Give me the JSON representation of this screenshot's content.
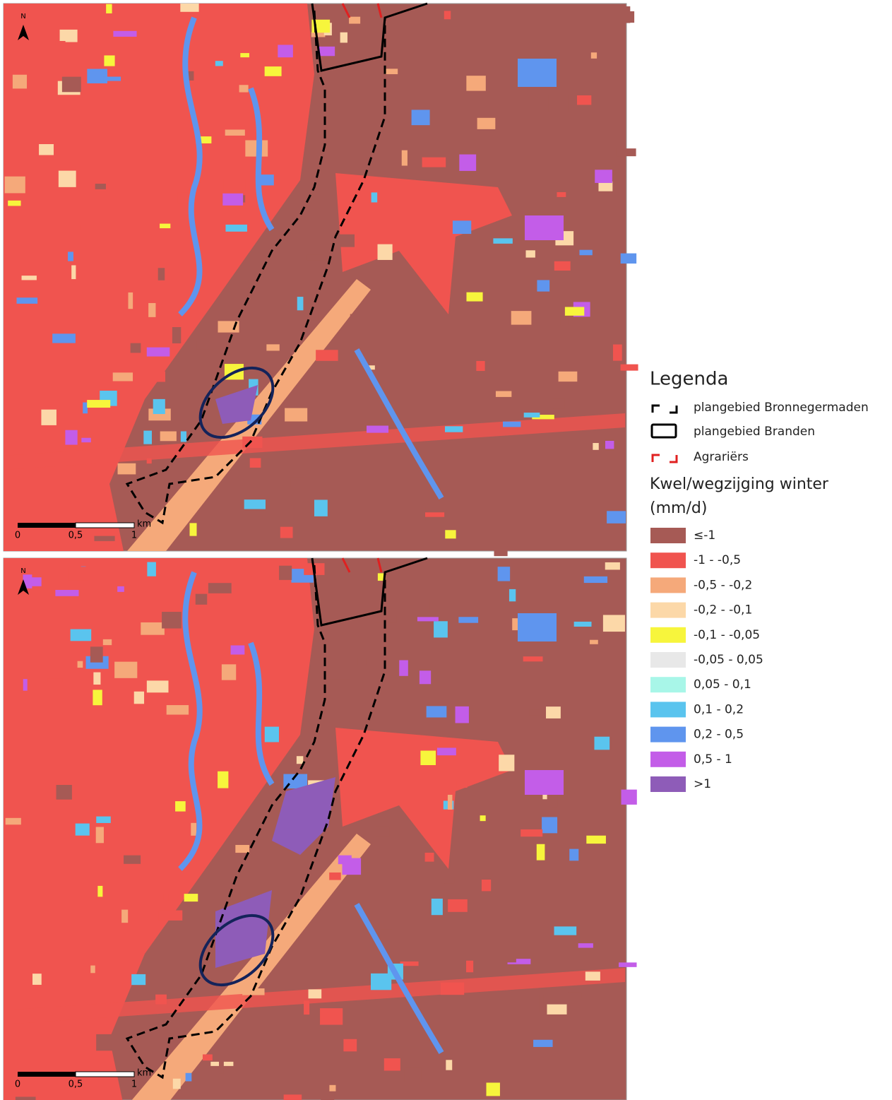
{
  "legend": {
    "title": "Legenda",
    "boundaries": [
      "plangebied Bronnegermaden",
      "plangebied Branden",
      "Agrariërs"
    ],
    "class_title": "Kwel/wegzijging winter",
    "class_unit": "(mm/d)",
    "classes": [
      {
        "label": "≤-1",
        "color": "#a65a55"
      },
      {
        "label": "-1 - -0,5",
        "color": "#f0544f"
      },
      {
        "label": "-0,5 - -0,2",
        "color": "#f5a97a"
      },
      {
        "label": "-0,2 - -0,1",
        "color": "#fcd8a8"
      },
      {
        "label": "-0,1 - -0,05",
        "color": "#f7f53c"
      },
      {
        "label": "-0,05 - 0,05",
        "color": "#e8e8e8"
      },
      {
        "label": "0,05 - 0,1",
        "color": "#a8f6e8"
      },
      {
        "label": "0,1 - 0,2",
        "color": "#5ac4ee"
      },
      {
        "label": "0,2 - 0,5",
        "color": "#5f95ee"
      },
      {
        "label": "0,5 - 1",
        "color": "#c35de8"
      },
      {
        "label": ">1",
        "color": "#8e5cb8"
      }
    ]
  },
  "maps": [
    {
      "north": "N",
      "scale_labels": [
        "0",
        "0,5",
        "1"
      ],
      "scale_unit": "km"
    },
    {
      "north": "N",
      "scale_labels": [
        "0",
        "0,5",
        "1"
      ],
      "scale_unit": "km"
    }
  ]
}
